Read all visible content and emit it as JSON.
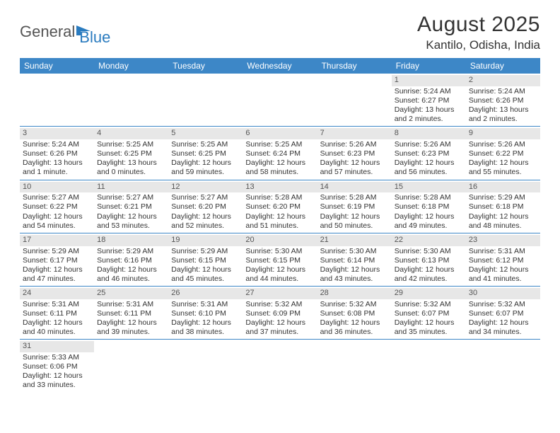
{
  "logo": {
    "text1": "General",
    "text2": "Blue"
  },
  "title": "August 2025",
  "location": "Kantilo, Odisha, India",
  "colors": {
    "header_bg": "#3d87c7",
    "header_text": "#ffffff",
    "daynum_bg": "#e7e7e7",
    "row_divider": "#3d87c7",
    "body_text": "#333333"
  },
  "weekdays": [
    "Sunday",
    "Monday",
    "Tuesday",
    "Wednesday",
    "Thursday",
    "Friday",
    "Saturday"
  ],
  "weeks": [
    [
      {
        "empty": true
      },
      {
        "empty": true
      },
      {
        "empty": true
      },
      {
        "empty": true
      },
      {
        "empty": true
      },
      {
        "day": "1",
        "sunrise": "Sunrise: 5:24 AM",
        "sunset": "Sunset: 6:27 PM",
        "daylight1": "Daylight: 13 hours",
        "daylight2": "and 2 minutes."
      },
      {
        "day": "2",
        "sunrise": "Sunrise: 5:24 AM",
        "sunset": "Sunset: 6:26 PM",
        "daylight1": "Daylight: 13 hours",
        "daylight2": "and 2 minutes."
      }
    ],
    [
      {
        "day": "3",
        "sunrise": "Sunrise: 5:24 AM",
        "sunset": "Sunset: 6:26 PM",
        "daylight1": "Daylight: 13 hours",
        "daylight2": "and 1 minute."
      },
      {
        "day": "4",
        "sunrise": "Sunrise: 5:25 AM",
        "sunset": "Sunset: 6:25 PM",
        "daylight1": "Daylight: 13 hours",
        "daylight2": "and 0 minutes."
      },
      {
        "day": "5",
        "sunrise": "Sunrise: 5:25 AM",
        "sunset": "Sunset: 6:25 PM",
        "daylight1": "Daylight: 12 hours",
        "daylight2": "and 59 minutes."
      },
      {
        "day": "6",
        "sunrise": "Sunrise: 5:25 AM",
        "sunset": "Sunset: 6:24 PM",
        "daylight1": "Daylight: 12 hours",
        "daylight2": "and 58 minutes."
      },
      {
        "day": "7",
        "sunrise": "Sunrise: 5:26 AM",
        "sunset": "Sunset: 6:23 PM",
        "daylight1": "Daylight: 12 hours",
        "daylight2": "and 57 minutes."
      },
      {
        "day": "8",
        "sunrise": "Sunrise: 5:26 AM",
        "sunset": "Sunset: 6:23 PM",
        "daylight1": "Daylight: 12 hours",
        "daylight2": "and 56 minutes."
      },
      {
        "day": "9",
        "sunrise": "Sunrise: 5:26 AM",
        "sunset": "Sunset: 6:22 PM",
        "daylight1": "Daylight: 12 hours",
        "daylight2": "and 55 minutes."
      }
    ],
    [
      {
        "day": "10",
        "sunrise": "Sunrise: 5:27 AM",
        "sunset": "Sunset: 6:22 PM",
        "daylight1": "Daylight: 12 hours",
        "daylight2": "and 54 minutes."
      },
      {
        "day": "11",
        "sunrise": "Sunrise: 5:27 AM",
        "sunset": "Sunset: 6:21 PM",
        "daylight1": "Daylight: 12 hours",
        "daylight2": "and 53 minutes."
      },
      {
        "day": "12",
        "sunrise": "Sunrise: 5:27 AM",
        "sunset": "Sunset: 6:20 PM",
        "daylight1": "Daylight: 12 hours",
        "daylight2": "and 52 minutes."
      },
      {
        "day": "13",
        "sunrise": "Sunrise: 5:28 AM",
        "sunset": "Sunset: 6:20 PM",
        "daylight1": "Daylight: 12 hours",
        "daylight2": "and 51 minutes."
      },
      {
        "day": "14",
        "sunrise": "Sunrise: 5:28 AM",
        "sunset": "Sunset: 6:19 PM",
        "daylight1": "Daylight: 12 hours",
        "daylight2": "and 50 minutes."
      },
      {
        "day": "15",
        "sunrise": "Sunrise: 5:28 AM",
        "sunset": "Sunset: 6:18 PM",
        "daylight1": "Daylight: 12 hours",
        "daylight2": "and 49 minutes."
      },
      {
        "day": "16",
        "sunrise": "Sunrise: 5:29 AM",
        "sunset": "Sunset: 6:18 PM",
        "daylight1": "Daylight: 12 hours",
        "daylight2": "and 48 minutes."
      }
    ],
    [
      {
        "day": "17",
        "sunrise": "Sunrise: 5:29 AM",
        "sunset": "Sunset: 6:17 PM",
        "daylight1": "Daylight: 12 hours",
        "daylight2": "and 47 minutes."
      },
      {
        "day": "18",
        "sunrise": "Sunrise: 5:29 AM",
        "sunset": "Sunset: 6:16 PM",
        "daylight1": "Daylight: 12 hours",
        "daylight2": "and 46 minutes."
      },
      {
        "day": "19",
        "sunrise": "Sunrise: 5:29 AM",
        "sunset": "Sunset: 6:15 PM",
        "daylight1": "Daylight: 12 hours",
        "daylight2": "and 45 minutes."
      },
      {
        "day": "20",
        "sunrise": "Sunrise: 5:30 AM",
        "sunset": "Sunset: 6:15 PM",
        "daylight1": "Daylight: 12 hours",
        "daylight2": "and 44 minutes."
      },
      {
        "day": "21",
        "sunrise": "Sunrise: 5:30 AM",
        "sunset": "Sunset: 6:14 PM",
        "daylight1": "Daylight: 12 hours",
        "daylight2": "and 43 minutes."
      },
      {
        "day": "22",
        "sunrise": "Sunrise: 5:30 AM",
        "sunset": "Sunset: 6:13 PM",
        "daylight1": "Daylight: 12 hours",
        "daylight2": "and 42 minutes."
      },
      {
        "day": "23",
        "sunrise": "Sunrise: 5:31 AM",
        "sunset": "Sunset: 6:12 PM",
        "daylight1": "Daylight: 12 hours",
        "daylight2": "and 41 minutes."
      }
    ],
    [
      {
        "day": "24",
        "sunrise": "Sunrise: 5:31 AM",
        "sunset": "Sunset: 6:11 PM",
        "daylight1": "Daylight: 12 hours",
        "daylight2": "and 40 minutes."
      },
      {
        "day": "25",
        "sunrise": "Sunrise: 5:31 AM",
        "sunset": "Sunset: 6:11 PM",
        "daylight1": "Daylight: 12 hours",
        "daylight2": "and 39 minutes."
      },
      {
        "day": "26",
        "sunrise": "Sunrise: 5:31 AM",
        "sunset": "Sunset: 6:10 PM",
        "daylight1": "Daylight: 12 hours",
        "daylight2": "and 38 minutes."
      },
      {
        "day": "27",
        "sunrise": "Sunrise: 5:32 AM",
        "sunset": "Sunset: 6:09 PM",
        "daylight1": "Daylight: 12 hours",
        "daylight2": "and 37 minutes."
      },
      {
        "day": "28",
        "sunrise": "Sunrise: 5:32 AM",
        "sunset": "Sunset: 6:08 PM",
        "daylight1": "Daylight: 12 hours",
        "daylight2": "and 36 minutes."
      },
      {
        "day": "29",
        "sunrise": "Sunrise: 5:32 AM",
        "sunset": "Sunset: 6:07 PM",
        "daylight1": "Daylight: 12 hours",
        "daylight2": "and 35 minutes."
      },
      {
        "day": "30",
        "sunrise": "Sunrise: 5:32 AM",
        "sunset": "Sunset: 6:07 PM",
        "daylight1": "Daylight: 12 hours",
        "daylight2": "and 34 minutes."
      }
    ],
    [
      {
        "day": "31",
        "sunrise": "Sunrise: 5:33 AM",
        "sunset": "Sunset: 6:06 PM",
        "daylight1": "Daylight: 12 hours",
        "daylight2": "and 33 minutes."
      },
      {
        "empty": true
      },
      {
        "empty": true
      },
      {
        "empty": true
      },
      {
        "empty": true
      },
      {
        "empty": true
      },
      {
        "empty": true
      }
    ]
  ]
}
